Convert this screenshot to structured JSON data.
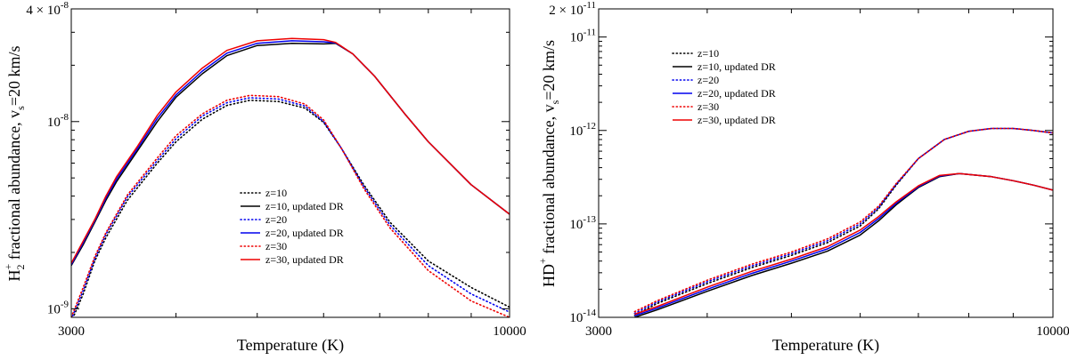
{
  "chart_data": [
    {
      "type": "line",
      "id": "left",
      "xscale": "log",
      "yscale": "log",
      "xlim": [
        3000,
        10000
      ],
      "ylim": [
        9e-10,
        4e-08
      ],
      "xlabel": "Temperature (K)",
      "ylabel_parts": {
        "p1": "H",
        "sub1": "2",
        "sup1": "+",
        "p2": " fractional abundance, v",
        "sub2": "s",
        "p3": "=20 km/s"
      },
      "x_ticks": [
        {
          "value": 3000,
          "label": "3000"
        },
        {
          "value": 10000,
          "label": "10000"
        }
      ],
      "y_ticks": [
        {
          "value": 1e-09,
          "mant": "10",
          "exp": "-9"
        },
        {
          "value": 1e-08,
          "mant": "10",
          "exp": "-8"
        },
        {
          "value": 4e-08,
          "mant": "4 × 10",
          "exp": "-8"
        }
      ],
      "legend_position": "center",
      "series": [
        {
          "name": "z=10",
          "color": "#000000",
          "dash": "dotted",
          "x": [
            3000,
            3100,
            3200,
            3300,
            3500,
            3800,
            4000,
            4300,
            4600,
            4900,
            5300,
            5700,
            6000,
            6300,
            6700,
            7200,
            8000,
            9000,
            10000
          ],
          "y": [
            8.5e-10,
            1.2e-09,
            1.8e-09,
            2.4e-09,
            3.8e-09,
            6e-09,
            7.8e-09,
            1.03e-08,
            1.22e-08,
            1.3e-08,
            1.28e-08,
            1.18e-08,
            9.9e-09,
            7.2e-09,
            4.6e-09,
            2.9e-09,
            1.8e-09,
            1.3e-09,
            1.02e-09
          ]
        },
        {
          "name": "z=10, updated DR",
          "color": "#000000",
          "dash": "solid",
          "x": [
            3000,
            3100,
            3200,
            3300,
            3400,
            3600,
            3800,
            4000,
            4300,
            4600,
            5000,
            5500,
            6000,
            6200,
            6500,
            6900,
            7500,
            8000,
            9000,
            10000
          ],
          "y": [
            1.7e-09,
            2.2e-09,
            2.9e-09,
            3.8e-09,
            4.8e-09,
            7e-09,
            1e-08,
            1.35e-08,
            1.8e-08,
            2.25e-08,
            2.55e-08,
            2.62e-08,
            2.6e-08,
            2.62e-08,
            2.3e-08,
            1.75e-08,
            1.1e-08,
            7.8e-09,
            4.6e-09,
            3.2e-09
          ]
        },
        {
          "name": "z=20",
          "color": "#0000ee",
          "dash": "dotted",
          "x": [
            3000,
            3100,
            3200,
            3300,
            3500,
            3800,
            4000,
            4300,
            4600,
            4900,
            5300,
            5700,
            6000,
            6300,
            6700,
            7200,
            8000,
            9000,
            10000
          ],
          "y": [
            8.8e-10,
            1.25e-09,
            1.85e-09,
            2.5e-09,
            3.95e-09,
            6.2e-09,
            8.1e-09,
            1.07e-08,
            1.26e-08,
            1.34e-08,
            1.32e-08,
            1.21e-08,
            1e-08,
            7.2e-09,
            4.5e-09,
            2.8e-09,
            1.7e-09,
            1.2e-09,
            9.6e-10
          ]
        },
        {
          "name": "z=20, updated DR",
          "color": "#0000ee",
          "dash": "solid",
          "x": [
            3000,
            3100,
            3200,
            3300,
            3400,
            3600,
            3800,
            4000,
            4300,
            4600,
            5000,
            5500,
            6000,
            6200,
            6500,
            6900,
            7500,
            8000,
            9000,
            10000
          ],
          "y": [
            1.72e-09,
            2.25e-09,
            2.95e-09,
            3.9e-09,
            4.95e-09,
            7.2e-09,
            1.04e-08,
            1.39e-08,
            1.86e-08,
            2.32e-08,
            2.62e-08,
            2.7e-08,
            2.67e-08,
            2.63e-08,
            2.3e-08,
            1.75e-08,
            1.1e-08,
            7.8e-09,
            4.6e-09,
            3.2e-09
          ]
        },
        {
          "name": "z=30",
          "color": "#ee0000",
          "dash": "dotted",
          "x": [
            3000,
            3100,
            3200,
            3300,
            3500,
            3800,
            4000,
            4300,
            4600,
            4900,
            5300,
            5700,
            6000,
            6300,
            6700,
            7200,
            8000,
            9000,
            10000
          ],
          "y": [
            9e-10,
            1.3e-09,
            1.9e-09,
            2.55e-09,
            4.05e-09,
            6.4e-09,
            8.4e-09,
            1.1e-08,
            1.3e-08,
            1.38e-08,
            1.36e-08,
            1.24e-08,
            1.02e-08,
            7.2e-09,
            4.4e-09,
            2.7e-09,
            1.6e-09,
            1.1e-09,
            9e-10
          ]
        },
        {
          "name": "z=30, updated DR",
          "color": "#ee0000",
          "dash": "solid",
          "x": [
            3000,
            3100,
            3200,
            3300,
            3400,
            3600,
            3800,
            4000,
            4300,
            4600,
            5000,
            5500,
            6000,
            6200,
            6500,
            6900,
            7500,
            8000,
            9000,
            10000
          ],
          "y": [
            1.75e-09,
            2.3e-09,
            3e-09,
            4e-09,
            5.1e-09,
            7.4e-09,
            1.08e-08,
            1.44e-08,
            1.93e-08,
            2.4e-08,
            2.7e-08,
            2.78e-08,
            2.74e-08,
            2.65e-08,
            2.3e-08,
            1.75e-08,
            1.1e-08,
            7.8e-09,
            4.6e-09,
            3.2e-09
          ]
        }
      ]
    },
    {
      "type": "line",
      "id": "right",
      "xscale": "log",
      "yscale": "log",
      "xlim": [
        3000,
        10000
      ],
      "ylim": [
        1e-14,
        2e-11
      ],
      "xlabel": "Temperature (K)",
      "ylabel_parts": {
        "p1": "HD",
        "sub1": "",
        "sup1": "+",
        "p2": " fractional abundance, v",
        "sub2": "s",
        "p3": "=20 km/s"
      },
      "x_ticks": [
        {
          "value": 3000,
          "label": "3000"
        },
        {
          "value": 10000,
          "label": "10000"
        }
      ],
      "y_ticks": [
        {
          "value": 1e-14,
          "mant": "10",
          "exp": "-14"
        },
        {
          "value": 1e-13,
          "mant": "10",
          "exp": "-13"
        },
        {
          "value": 1e-12,
          "mant": "10",
          "exp": "-12"
        },
        {
          "value": 1e-11,
          "mant": "10",
          "exp": "-11"
        },
        {
          "value": 2e-11,
          "mant": "2 × 10",
          "exp": "-11"
        }
      ],
      "legend_position": "top-left",
      "series": [
        {
          "name": "z=10",
          "color": "#000000",
          "dash": "dotted",
          "x": [
            3300,
            3500,
            4000,
            4500,
            5000,
            5500,
            6000,
            6300,
            6600,
            7000,
            7500,
            8000,
            8500,
            9000,
            9500,
            10000
          ],
          "y": [
            1.05e-14,
            1.4e-14,
            2.3e-14,
            3.4e-14,
            4.6e-14,
            6.3e-14,
            9.5e-14,
            1.45e-13,
            2.6e-13,
            5e-13,
            8e-13,
            9.8e-13,
            1.05e-12,
            1.05e-12,
            1e-12,
            9.4e-13
          ]
        },
        {
          "name": "z=10, updated DR",
          "color": "#000000",
          "dash": "solid",
          "x": [
            3300,
            3500,
            4000,
            4500,
            5000,
            5500,
            6000,
            6300,
            6600,
            7000,
            7400,
            7800,
            8500,
            9000,
            9500,
            10000
          ],
          "y": [
            1e-14,
            1.2e-14,
            1.9e-14,
            2.8e-14,
            3.8e-14,
            5.1e-14,
            7.6e-14,
            1.08e-13,
            1.6e-13,
            2.45e-13,
            3.2e-13,
            3.45e-13,
            3.2e-13,
            2.9e-13,
            2.6e-13,
            2.3e-13
          ]
        },
        {
          "name": "z=20",
          "color": "#0000ee",
          "dash": "dotted",
          "x": [
            3300,
            3500,
            4000,
            4500,
            5000,
            5500,
            6000,
            6300,
            6600,
            7000,
            7500,
            8000,
            8500,
            9000,
            9500,
            10000
          ],
          "y": [
            1.1e-14,
            1.45e-14,
            2.4e-14,
            3.55e-14,
            4.8e-14,
            6.6e-14,
            1e-13,
            1.5e-13,
            2.65e-13,
            5e-13,
            8e-13,
            9.8e-13,
            1.05e-12,
            1.05e-12,
            1e-12,
            9.4e-13
          ]
        },
        {
          "name": "z=20, updated DR",
          "color": "#0000ee",
          "dash": "solid",
          "x": [
            3300,
            3500,
            4000,
            4500,
            5000,
            5500,
            6000,
            6300,
            6600,
            7000,
            7400,
            7800,
            8500,
            9000,
            9500,
            10000
          ],
          "y": [
            1.04e-14,
            1.25e-14,
            2e-14,
            2.95e-14,
            4e-14,
            5.4e-14,
            8.1e-14,
            1.14e-13,
            1.66e-13,
            2.5e-13,
            3.25e-13,
            3.45e-13,
            3.2e-13,
            2.9e-13,
            2.6e-13,
            2.3e-13
          ]
        },
        {
          "name": "z=30",
          "color": "#ee0000",
          "dash": "dotted",
          "x": [
            3300,
            3500,
            4000,
            4500,
            5000,
            5500,
            6000,
            6300,
            6600,
            7000,
            7500,
            8000,
            8500,
            9000,
            9500,
            10000
          ],
          "y": [
            1.15e-14,
            1.5e-14,
            2.5e-14,
            3.7e-14,
            5e-14,
            6.9e-14,
            1.05e-13,
            1.55e-13,
            2.7e-13,
            5e-13,
            8e-13,
            9.8e-13,
            1.05e-12,
            1.05e-12,
            1e-12,
            9.4e-13
          ]
        },
        {
          "name": "z=30, updated DR",
          "color": "#ee0000",
          "dash": "solid",
          "x": [
            3300,
            3500,
            4000,
            4500,
            5000,
            5500,
            6000,
            6300,
            6600,
            7000,
            7400,
            7800,
            8500,
            9000,
            9500,
            10000
          ],
          "y": [
            1.08e-14,
            1.3e-14,
            2.1e-14,
            3.1e-14,
            4.2e-14,
            5.7e-14,
            8.6e-14,
            1.2e-13,
            1.72e-13,
            2.55e-13,
            3.3e-13,
            3.45e-13,
            3.2e-13,
            2.9e-13,
            2.6e-13,
            2.3e-13
          ]
        }
      ]
    }
  ]
}
